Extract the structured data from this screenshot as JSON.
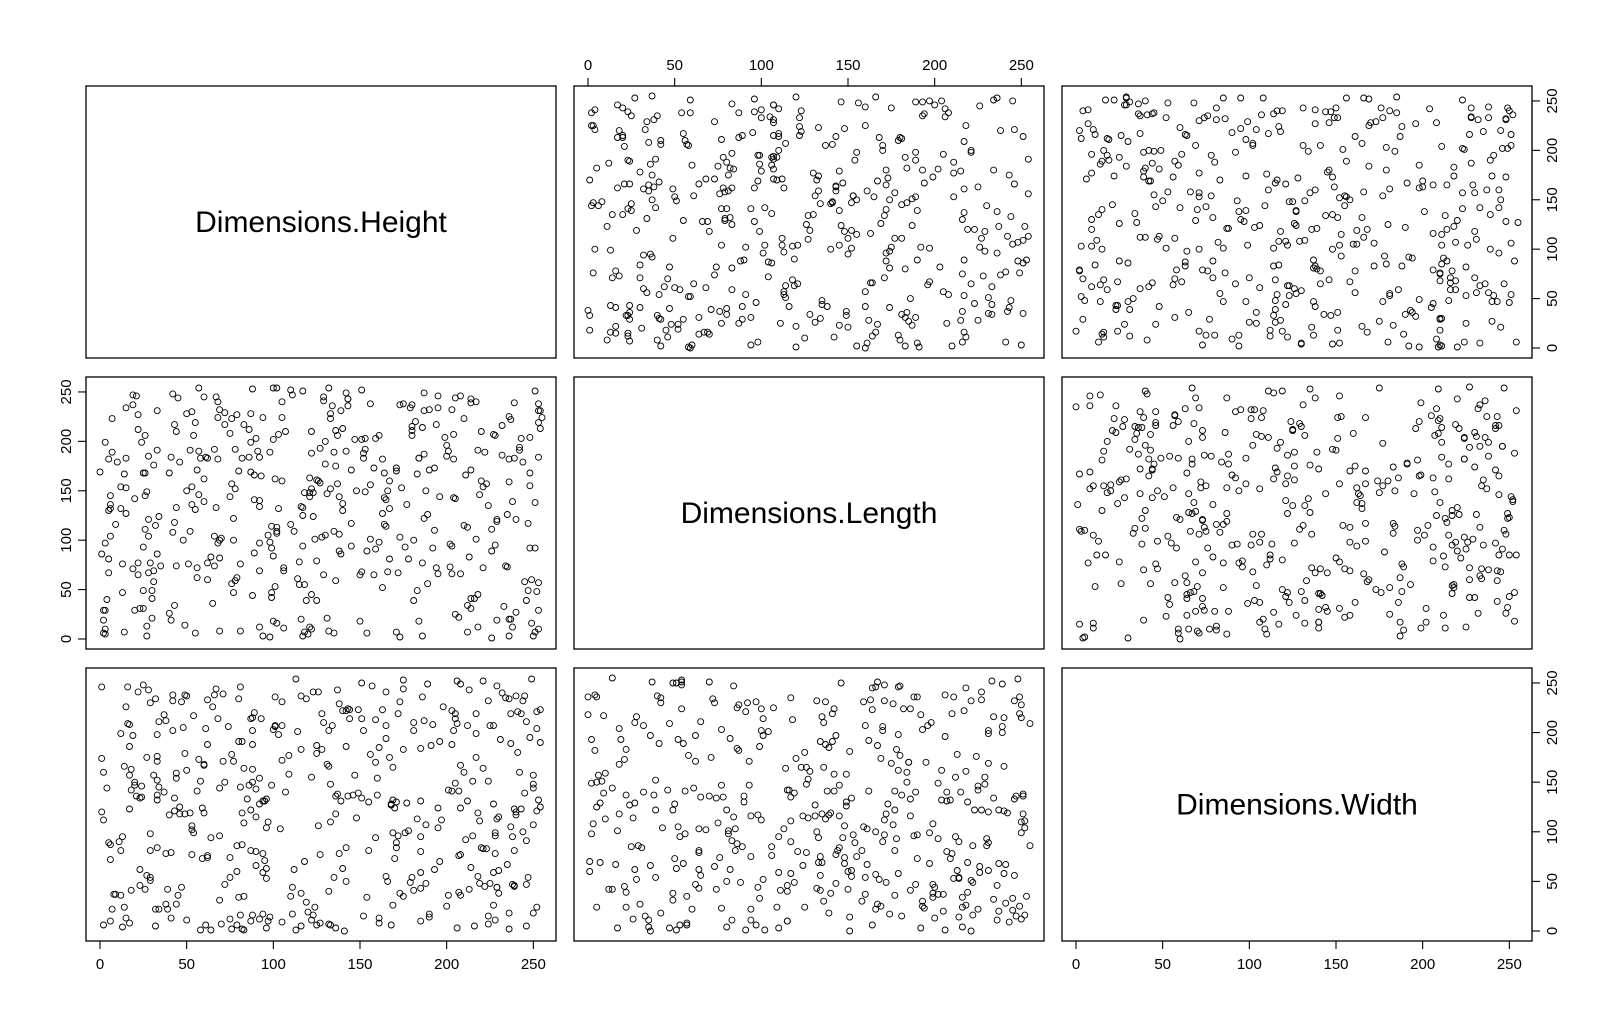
{
  "chart_data": {
    "type": "scatter",
    "variables": [
      "Dimensions.Height",
      "Dimensions.Length",
      "Dimensions.Width"
    ],
    "axis_range": [
      0,
      255
    ],
    "ticks": [
      "0",
      "50",
      "100",
      "150",
      "200",
      "250"
    ],
    "tick_values": [
      0,
      50,
      100,
      150,
      200,
      250
    ],
    "grid": false,
    "point_count_per_panel": 460,
    "panels": [
      {
        "row": 1,
        "col": 2,
        "x_var": "Dimensions.Length",
        "y_var": "Dimensions.Height",
        "seed": 11
      },
      {
        "row": 1,
        "col": 3,
        "x_var": "Dimensions.Width",
        "y_var": "Dimensions.Height",
        "seed": 23
      },
      {
        "row": 2,
        "col": 1,
        "x_var": "Dimensions.Height",
        "y_var": "Dimensions.Length",
        "seed": 37
      },
      {
        "row": 2,
        "col": 3,
        "x_var": "Dimensions.Width",
        "y_var": "Dimensions.Length",
        "seed": 41
      },
      {
        "row": 3,
        "col": 1,
        "x_var": "Dimensions.Height",
        "y_var": "Dimensions.Width",
        "seed": 53
      },
      {
        "row": 3,
        "col": 2,
        "x_var": "Dimensions.Length",
        "y_var": "Dimensions.Width",
        "seed": 67
      }
    ],
    "value_note": "Points are uniformly scattered over 0-255 on both axes in every panel"
  }
}
